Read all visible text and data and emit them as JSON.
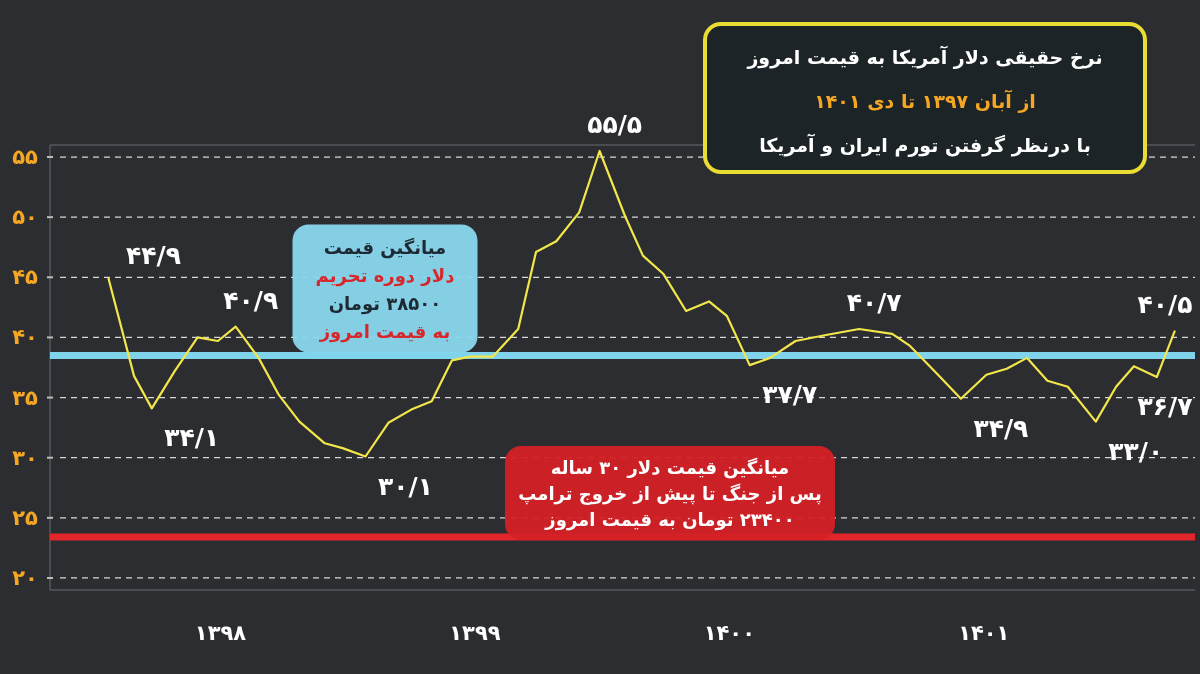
{
  "chart_data": {
    "type": "line",
    "title": "نرخ حقیقی دلار آمریکا به قیمت امروز",
    "subtitle": "از آبان ۱۳۹۷ تا دی ۱۴۰۱\nبا درنظر گرفتن تورم ایران و آمریکا",
    "x": [
      1397.56,
      1397.66,
      1397.73,
      1397.82,
      1397.91,
      1397.99,
      1398.06,
      1398.15,
      1398.23,
      1398.31,
      1398.41,
      1398.48,
      1398.57,
      1398.66,
      1398.75,
      1398.83,
      1398.91,
      1398.98,
      1399.07,
      1399.17,
      1399.24,
      1399.32,
      1399.41,
      1399.49,
      1399.59,
      1399.66,
      1399.74,
      1399.83,
      1399.92,
      1399.99,
      1400.08,
      1400.16,
      1400.26,
      1400.38,
      1400.51,
      1400.64,
      1400.71,
      1400.82,
      1400.91,
      1401.01,
      1401.09,
      1401.17,
      1401.25,
      1401.33,
      1401.44,
      1401.52,
      1401.59,
      1401.68,
      1401.75
    ],
    "series": [
      {
        "color": "#f2e64a",
        "values": [
          44.9,
          36.8,
          34.1,
          37.2,
          40.0,
          39.7,
          40.9,
          38.3,
          35.2,
          33.0,
          31.2,
          30.8,
          30.1,
          32.9,
          34.0,
          34.7,
          38.1,
          38.4,
          38.4,
          40.7,
          47.1,
          48.0,
          50.4,
          55.5,
          50.1,
          46.8,
          45.3,
          42.2,
          43.0,
          41.8,
          37.7,
          38.3,
          39.7,
          40.2,
          40.7,
          40.3,
          39.3,
          36.9,
          34.9,
          36.9,
          37.4,
          38.3,
          36.4,
          35.9,
          33.0,
          35.9,
          37.6,
          36.7,
          40.5
        ]
      }
    ],
    "xlim": [
      1397.33,
      1401.83
    ],
    "ylim": [
      19,
      56
    ],
    "xticks": [
      {
        "value": 1398,
        "label": "۱۳۹۸"
      },
      {
        "value": 1399,
        "label": "۱۳۹۹"
      },
      {
        "value": 1400,
        "label": "۱۴۰۰"
      },
      {
        "value": 1401,
        "label": "۱۴۰۱"
      }
    ],
    "yticks": [
      {
        "value": 20,
        "label": "۲۰"
      },
      {
        "value": 25,
        "label": "۲۵"
      },
      {
        "value": 30,
        "label": "۳۰"
      },
      {
        "value": 35,
        "label": "۳۵"
      },
      {
        "value": 40,
        "label": "۴۰"
      },
      {
        "value": 45,
        "label": "۴۵"
      },
      {
        "value": 50,
        "label": "۵۰"
      },
      {
        "value": 55,
        "label": "۵۵"
      }
    ],
    "grid": "y",
    "ref_lines": [
      {
        "axis": "y",
        "value": 38.5,
        "label": "میانگین قیمت\nدلار دوره تحریم\n۳۸۵۰۰ تومان\nبه قیمت امروز",
        "color": "#7fd3ea"
      },
      {
        "axis": "y",
        "value": 23.4,
        "label": "میانگین قیمت دلار ۳۰ ساله\nپس از جنگ تا پیش از خروج ترامپ\n۲۳۴۰۰ تومان به قیمت امروز",
        "color": "#e3262b"
      }
    ],
    "annotations": [
      {
        "text": "۴۴/۹",
        "x": 1397.56,
        "y": 44.9
      },
      {
        "text": "۳۴/۱",
        "x": 1397.73,
        "y": 34.1
      },
      {
        "text": "۴۰/۹",
        "x": 1398.06,
        "y": 40.9
      },
      {
        "text": "۳۰/۱",
        "x": 1398.57,
        "y": 30.1
      },
      {
        "text": "۵۵/۵",
        "x": 1399.49,
        "y": 55.5
      },
      {
        "text": "۳۷/۷",
        "x": 1400.08,
        "y": 37.7
      },
      {
        "text": "۴۰/۷",
        "x": 1400.51,
        "y": 40.7
      },
      {
        "text": "۳۴/۹",
        "x": 1400.91,
        "y": 34.9
      },
      {
        "text": "۳۳/۰",
        "x": 1401.44,
        "y": 33.0
      },
      {
        "text": "۳۶/۷",
        "x": 1401.68,
        "y": 36.7
      },
      {
        "text": "۴۰/۵",
        "x": 1401.75,
        "y": 40.5
      }
    ]
  }
}
